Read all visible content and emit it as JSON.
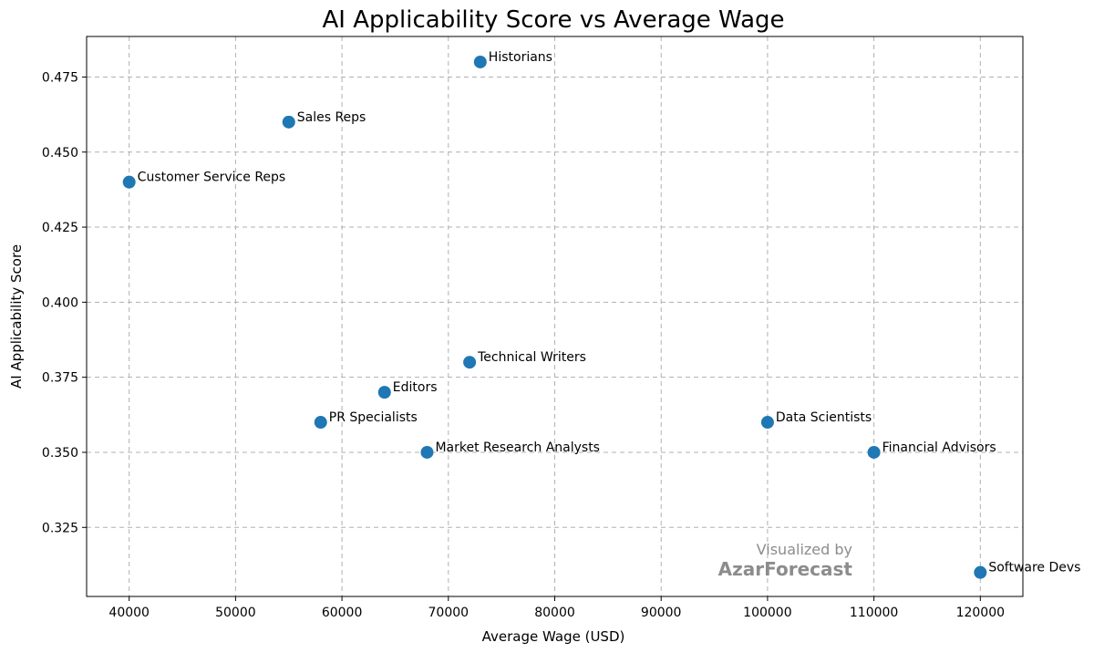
{
  "chart_data": {
    "type": "scatter",
    "title": "AI Applicability Score vs Average Wage",
    "xlabel": "Average Wage (USD)",
    "ylabel": "AI Applicability Score",
    "xlim": [
      36000,
      124000
    ],
    "ylim": [
      0.302,
      0.4885
    ],
    "x_ticks": [
      40000,
      50000,
      60000,
      70000,
      80000,
      90000,
      100000,
      110000,
      120000
    ],
    "y_ticks": [
      0.325,
      0.35,
      0.375,
      0.4,
      0.425,
      0.45,
      0.475
    ],
    "grid": true,
    "marker_color": "#1f77b4",
    "points": [
      {
        "label": "Historians",
        "x": 73000,
        "y": 0.48
      },
      {
        "label": "Sales Reps",
        "x": 55000,
        "y": 0.46
      },
      {
        "label": "Customer Service Reps",
        "x": 40000,
        "y": 0.44
      },
      {
        "label": "Technical Writers",
        "x": 72000,
        "y": 0.38
      },
      {
        "label": "Editors",
        "x": 64000,
        "y": 0.37
      },
      {
        "label": "PR Specialists",
        "x": 58000,
        "y": 0.36
      },
      {
        "label": "Market Research Analysts",
        "x": 68000,
        "y": 0.35
      },
      {
        "label": "Data Scientists",
        "x": 100000,
        "y": 0.36
      },
      {
        "label": "Financial Advisors",
        "x": 110000,
        "y": 0.35
      },
      {
        "label": "Software Devs",
        "x": 120000,
        "y": 0.31
      }
    ]
  },
  "watermark": {
    "line1": "Visualized by",
    "line2": "AzarForecast"
  }
}
